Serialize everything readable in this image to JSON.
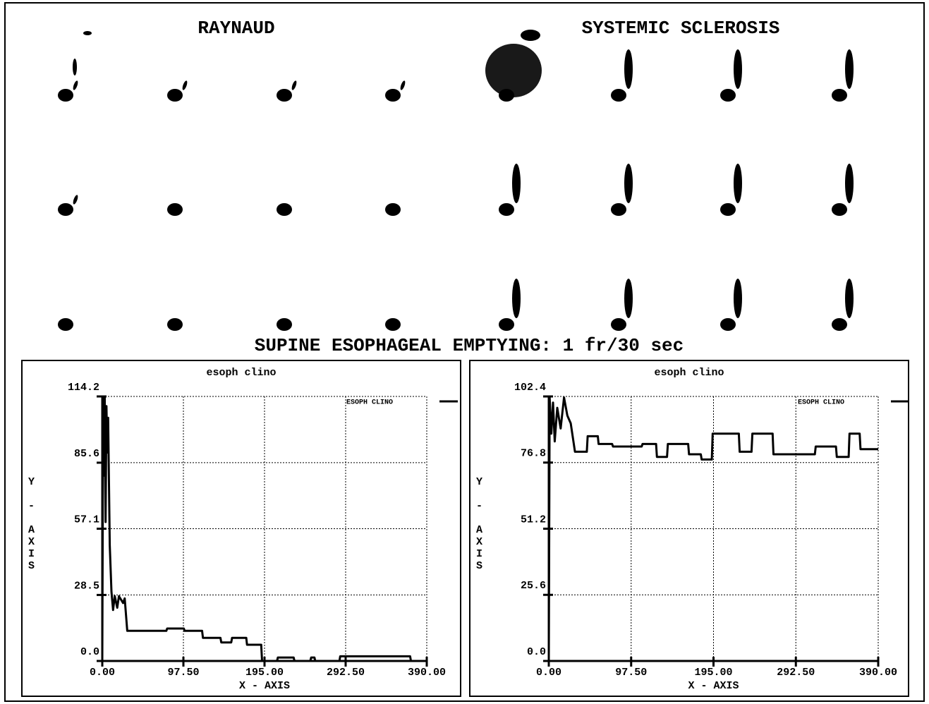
{
  "figure": {
    "left_title": "RAYNAUD",
    "right_title": "SYSTEMIC SCLEROSIS",
    "caption": "SUPINE ESOPHAGEAL EMPTYING: 1 fr/30 sec"
  },
  "chart_data": [
    {
      "type": "line",
      "title": "esoph clino",
      "x_label": "X - AXIS",
      "y_label": "Y - AXIS",
      "grid": true,
      "xlim": [
        0,
        390
      ],
      "ylim": [
        0,
        114.2
      ],
      "xticks": [
        {
          "value": 0,
          "label": "0.00"
        },
        {
          "value": 97.5,
          "label": "97.50"
        },
        {
          "value": 195,
          "label": "195.00"
        },
        {
          "value": 292.5,
          "label": "292.50"
        },
        {
          "value": 390,
          "label": "390.00"
        }
      ],
      "yticks": [
        {
          "value": 0,
          "label": "0.0"
        },
        28.5,
        57.1,
        85.6,
        114.2
      ],
      "series": [
        {
          "name": "ESOPH CLINO",
          "color": "#000000",
          "x": [
            0,
            1,
            2,
            3,
            4,
            5,
            6,
            7,
            9,
            11,
            13,
            15,
            18,
            20,
            25,
            27,
            30,
            77,
            78,
            98,
            99,
            120,
            121,
            142,
            143,
            155,
            156,
            173,
            174,
            191,
            192,
            210,
            211,
            230,
            231,
            250,
            251,
            255,
            256,
            285,
            286,
            370,
            371,
            390
          ],
          "values": [
            0,
            114,
            80,
            114,
            60,
            110,
            90,
            105,
            50,
            30,
            22,
            28,
            23,
            28,
            25,
            27,
            13,
            13,
            14,
            14,
            13,
            13,
            10,
            10,
            8,
            8,
            10,
            10,
            7,
            7,
            0,
            0,
            1.5,
            1.5,
            0,
            0,
            1.5,
            1.5,
            0,
            0,
            2,
            2,
            0,
            0
          ]
        }
      ]
    },
    {
      "type": "line",
      "title": "esoph clino",
      "x_label": "X - AXIS",
      "y_label": "Y - AXIS",
      "grid": true,
      "xlim": [
        0,
        390
      ],
      "ylim": [
        0,
        102.4
      ],
      "xticks": [
        {
          "value": 0,
          "label": "0.00"
        },
        {
          "value": 97.5,
          "label": "97.50"
        },
        {
          "value": 195,
          "label": "195.00"
        },
        {
          "value": 292.5,
          "label": "292.50"
        },
        {
          "value": 390,
          "label": "390.00"
        }
      ],
      "yticks": [
        {
          "value": 0,
          "label": "0.0"
        },
        25.6,
        51.2,
        76.8,
        102.4
      ],
      "series": [
        {
          "name": "ESOPH CLINO",
          "color": "#000000",
          "x": [
            0,
            1,
            3,
            5,
            7,
            10,
            14,
            18,
            22,
            26,
            31,
            45,
            46,
            58,
            59,
            75,
            76,
            110,
            111,
            127,
            128,
            140,
            141,
            165,
            166,
            180,
            181,
            193,
            194,
            225,
            226,
            240,
            241,
            265,
            266,
            315,
            316,
            340,
            341,
            355,
            356,
            368,
            369,
            390
          ],
          "values": [
            0,
            102,
            88,
            100,
            85,
            98,
            90,
            102,
            95,
            92,
            81,
            81,
            87,
            87,
            84,
            84,
            83,
            83,
            84,
            84,
            79,
            79,
            84,
            84,
            80,
            80,
            78,
            78,
            88,
            88,
            81,
            81,
            88,
            88,
            80,
            80,
            83,
            83,
            79,
            79,
            88,
            88,
            82,
            82
          ]
        }
      ]
    }
  ]
}
